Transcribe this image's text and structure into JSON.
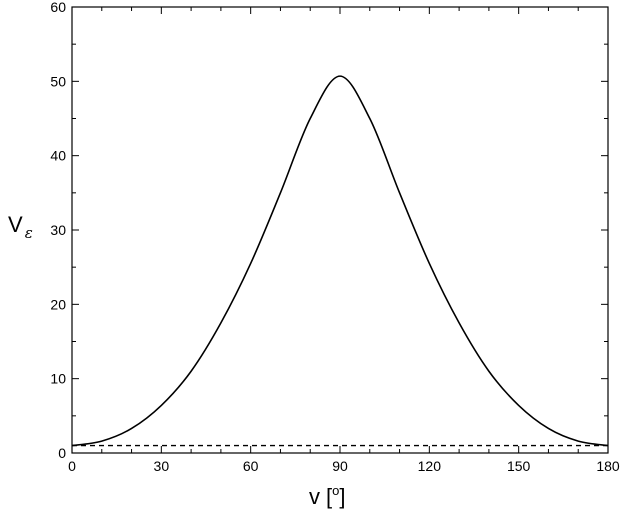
{
  "chart_data": {
    "type": "line",
    "xlabel": "v",
    "xunit": "o",
    "ylabel": "V",
    "ylabel_sub": "ε",
    "xlim": [
      0,
      180
    ],
    "ylim": [
      0,
      60
    ],
    "xticks": [
      0,
      30,
      60,
      90,
      120,
      150,
      180
    ],
    "yticks": [
      0,
      10,
      20,
      30,
      40,
      50,
      60
    ],
    "grid": false,
    "series": [
      {
        "style": "solid",
        "x": [
          0,
          10,
          20,
          30,
          40,
          50,
          60,
          70,
          80,
          90,
          100,
          110,
          120,
          130,
          140,
          150,
          160,
          170,
          180
        ],
        "y": [
          1.0,
          1.6,
          3.3,
          6.4,
          11.0,
          17.5,
          25.5,
          35.0,
          45.0,
          50.7,
          45.0,
          35.0,
          25.5,
          17.5,
          11.0,
          6.4,
          3.3,
          1.6,
          1.0
        ]
      },
      {
        "style": "dashed",
        "x": [
          0,
          180
        ],
        "y": [
          1.0,
          1.0
        ]
      }
    ],
    "colors": {
      "line": "#000000"
    }
  }
}
